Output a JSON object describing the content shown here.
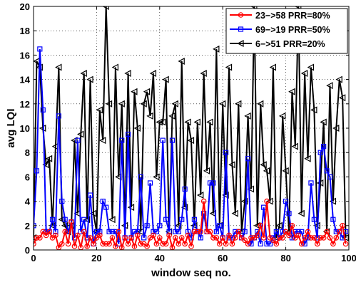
{
  "chart_data": {
    "type": "line",
    "xlabel": "window seq no.",
    "ylabel": "avg LQI",
    "xlim": [
      0,
      100
    ],
    "ylim": [
      0,
      20
    ],
    "xticks": [
      "0",
      "20",
      "40",
      "60",
      "80",
      "100"
    ],
    "yticks": [
      "0",
      "2",
      "4",
      "6",
      "8",
      "10",
      "12",
      "14",
      "16",
      "18",
      "20"
    ],
    "grid": "dotted",
    "legend_position": "top-right",
    "series": [
      {
        "name": "23−>58 PRR=80%",
        "color": "#ff0000",
        "marker": "circle",
        "x": [
          0,
          1,
          2,
          3,
          4,
          5,
          6,
          7,
          8,
          9,
          10,
          11,
          12,
          13,
          14,
          15,
          16,
          17,
          18,
          19,
          20,
          21,
          22,
          23,
          24,
          25,
          26,
          27,
          28,
          29,
          30,
          31,
          32,
          33,
          34,
          35,
          36,
          37,
          38,
          39,
          40,
          41,
          42,
          43,
          44,
          45,
          46,
          47,
          48,
          49,
          50,
          51,
          52,
          53,
          54,
          55,
          56,
          57,
          58,
          59,
          60,
          61,
          62,
          63,
          64,
          65,
          66,
          67,
          68,
          69,
          70,
          71,
          72,
          73,
          74,
          75,
          76,
          77,
          78,
          79,
          80,
          81,
          82,
          83,
          84,
          85,
          86,
          87,
          88,
          89,
          90,
          91,
          92,
          93,
          94,
          95,
          96,
          97,
          98,
          99
        ],
        "y": [
          0.5,
          1.0,
          1.0,
          1.5,
          1.2,
          1.5,
          1.0,
          1.2,
          0.2,
          0.5,
          1.5,
          0.5,
          2.3,
          0.3,
          1.2,
          0.2,
          1.5,
          0.3,
          1.0,
          0.5,
          1.0,
          1.2,
          0.5,
          0.5,
          0.5,
          1.0,
          0.3,
          1.5,
          0.2,
          1.0,
          0.5,
          1.0,
          0.3,
          1.2,
          0.5,
          0.5,
          0.3,
          1.0,
          1.2,
          0.5,
          1.0,
          0.5,
          0.5,
          1.2,
          0.2,
          1.0,
          0.5,
          1.0,
          0.5,
          1.2,
          0.3,
          1.5,
          1.5,
          1.5,
          4.0,
          1.5,
          1.5,
          1.0,
          1.0,
          0.5,
          1.0,
          0.5,
          1.2,
          0.5,
          1.0,
          1.5,
          1.0,
          0.8,
          0.5,
          1.0,
          1.0,
          1.2,
          2.0,
          1.0,
          4.0,
          1.0,
          0.8,
          0.5,
          1.0,
          1.0,
          1.5,
          1.2,
          2.0,
          1.0,
          1.2,
          0.5,
          1.0,
          1.5,
          1.0,
          1.0,
          0.5,
          1.0,
          1.0,
          1.5,
          1.0,
          0.5,
          1.0,
          1.5,
          2.0,
          0.5
        ]
      },
      {
        "name": "69−>19 PRR=50%",
        "color": "#0000ff",
        "marker": "square",
        "x": [
          0,
          1,
          2,
          3,
          4,
          5,
          6,
          7,
          8,
          9,
          10,
          11,
          12,
          13,
          14,
          15,
          16,
          17,
          18,
          19,
          20,
          21,
          22,
          23,
          24,
          25,
          26,
          27,
          28,
          29,
          30,
          31,
          32,
          33,
          34,
          35,
          36,
          37,
          38,
          39,
          40,
          41,
          42,
          43,
          44,
          45,
          46,
          47,
          48,
          49,
          50,
          51,
          52,
          53,
          54,
          55,
          56,
          57,
          58,
          59,
          60,
          61,
          62,
          63,
          64,
          65,
          66,
          67,
          68,
          69,
          70,
          71,
          72,
          73,
          74,
          75,
          76,
          77,
          78,
          79,
          80,
          81,
          82,
          83,
          84,
          85,
          86,
          87,
          88,
          89,
          90,
          91,
          92,
          93,
          94,
          95,
          96,
          97,
          98,
          99
        ],
        "y": [
          2.0,
          6.5,
          16.5,
          11.5,
          1.5,
          1.5,
          2.5,
          1.5,
          11.0,
          4.0,
          2.5,
          1.5,
          2.3,
          1.0,
          9.0,
          1.5,
          2.5,
          1.0,
          4.5,
          0.5,
          1.5,
          1.5,
          4.0,
          3.5,
          1.5,
          1.5,
          1.5,
          0.5,
          9.0,
          1.0,
          9.5,
          1.0,
          1.5,
          1.5,
          6.0,
          1.0,
          2.0,
          5.5,
          1.5,
          1.5,
          2.0,
          9.0,
          2.5,
          1.5,
          9.0,
          1.5,
          1.5,
          2.5,
          5.0,
          1.5,
          1.0,
          2.5,
          1.5,
          1.0,
          3.0,
          1.5,
          5.5,
          5.5,
          1.5,
          2.0,
          1.0,
          8.0,
          1.0,
          1.0,
          1.5,
          1.5,
          1.0,
          1.5,
          7.5,
          0.5,
          1.0,
          1.5,
          0.5,
          3.5,
          0.5,
          0.5,
          1.0,
          1.5,
          1.0,
          1.5,
          4.0,
          3.0,
          1.0,
          1.5,
          1.5,
          1.5,
          0.5,
          1.0,
          5.5,
          2.5,
          1.0,
          8.0,
          8.5,
          6.5,
          6.0,
          2.5,
          1.5,
          1.5,
          1.0,
          1.5
        ]
      },
      {
        "name": "6−>51 PRR=20%",
        "color": "#000000",
        "marker": "triangle-left",
        "x": [
          0,
          1,
          2,
          3,
          4,
          5,
          6,
          7,
          8,
          9,
          10,
          11,
          12,
          13,
          14,
          15,
          16,
          17,
          18,
          19,
          20,
          21,
          22,
          23,
          24,
          25,
          26,
          27,
          28,
          29,
          30,
          31,
          32,
          33,
          34,
          35,
          36,
          37,
          38,
          39,
          40,
          41,
          42,
          43,
          44,
          45,
          46,
          47,
          48,
          49,
          50,
          51,
          52,
          53,
          54,
          55,
          56,
          57,
          58,
          59,
          60,
          61,
          62,
          63,
          64,
          65,
          66,
          67,
          68,
          69,
          70,
          71,
          72,
          73,
          74,
          75,
          76,
          77,
          78,
          79,
          80,
          81,
          82,
          83,
          84,
          85,
          86,
          87,
          88,
          89,
          90,
          91,
          92,
          93,
          94,
          95,
          96,
          97,
          98,
          99
        ],
        "y": [
          1.0,
          15.5,
          15.0,
          10.0,
          7.0,
          7.5,
          2.0,
          8.5,
          15.0,
          2.5,
          2.0,
          1.5,
          2.0,
          9.0,
          3.0,
          9.5,
          14.5,
          2.5,
          14.0,
          3.0,
          1.5,
          11.5,
          9.0,
          20.0,
          12.0,
          2.5,
          15.0,
          6.0,
          12.0,
          2.0,
          14.5,
          3.5,
          13.0,
          10.0,
          1.5,
          12.0,
          13.0,
          11.0,
          14.5,
          6.0,
          10.5,
          10.5,
          14.0,
          1.5,
          11.0,
          12.0,
          2.0,
          15.5,
          3.5,
          10.5,
          9.0,
          2.0,
          10.5,
          4.5,
          14.5,
          6.5,
          10.5,
          3.0,
          16.5,
          2.0,
          12.0,
          4.5,
          15.0,
          7.0,
          3.0,
          12.0,
          1.5,
          4.0,
          11.0,
          5.0,
          20.0,
          2.0,
          12.0,
          7.0,
          6.5,
          4.0,
          15.0,
          1.0,
          2.0,
          11.0,
          6.5,
          1.5,
          13.0,
          8.5,
          20.0,
          3.0,
          14.5,
          7.5,
          15.0,
          11.5,
          2.0,
          5.5,
          10.5,
          1.5,
          13.5,
          4.0,
          10.0,
          14.0,
          12.5,
          1.0
        ]
      }
    ]
  }
}
